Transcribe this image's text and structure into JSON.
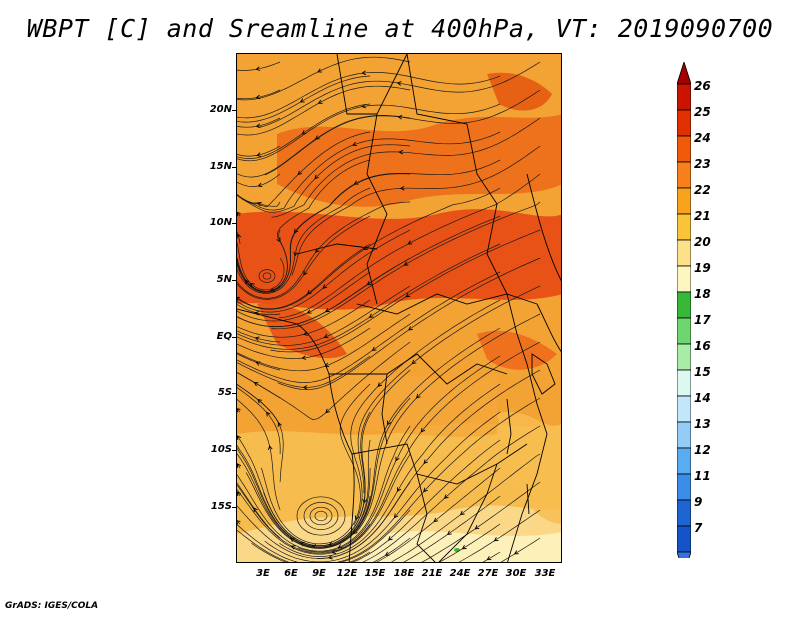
{
  "title": "WBPT [C] and Sreamline at 400hPa, VT: 2019090700",
  "footer": "GrADS: IGES/COLA",
  "map": {
    "region": "Central Africa",
    "lon_range": [
      0,
      35
    ],
    "lat_range": [
      -20,
      25
    ],
    "shaded_field": "wet-bulb potential temperature",
    "overlay": "streamlines",
    "lat_labels": [
      "20N",
      "15N",
      "10N",
      "5N",
      "EQ",
      "5S",
      "10S",
      "15S"
    ],
    "lon_labels": [
      "3E",
      "6E",
      "9E",
      "12E",
      "15E",
      "18E",
      "21E",
      "24E",
      "27E",
      "30E",
      "33E"
    ]
  },
  "colorbar": {
    "labels": [
      "26",
      "25",
      "24",
      "23",
      "22",
      "21",
      "20",
      "19",
      "18",
      "17",
      "16",
      "15",
      "14",
      "13",
      "12",
      "11",
      "9",
      "7"
    ],
    "colors": [
      "#a50000",
      "#c81400",
      "#e03000",
      "#f05a0a",
      "#f8801a",
      "#f8a21e",
      "#fac43a",
      "#fce08a",
      "#fdf6c0",
      "#38b838",
      "#6ed66e",
      "#a8eca8",
      "#dcf8f0",
      "#c2e6fa",
      "#94ccf6",
      "#5aacf0",
      "#3c8cea",
      "#1e64d2",
      "#1454c8"
    ],
    "arrow_top_color": "#a50000",
    "arrow_bottom_color": "#3472e0"
  }
}
